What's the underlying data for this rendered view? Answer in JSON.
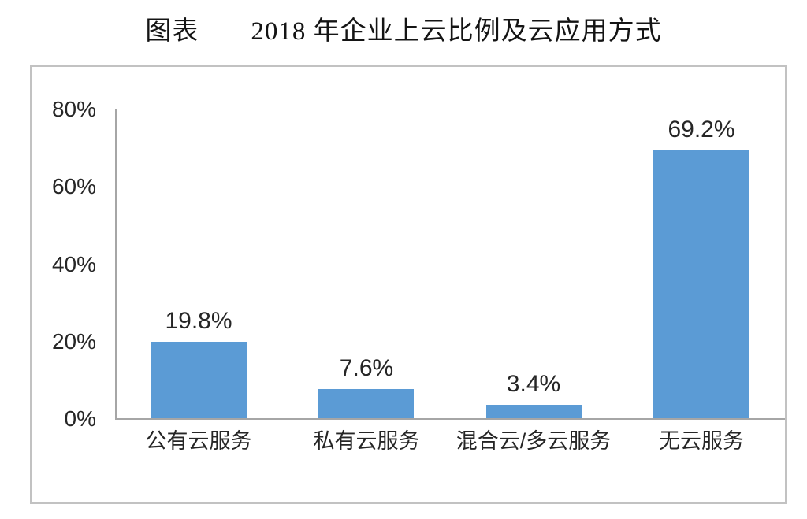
{
  "title": {
    "prefix": "图表",
    "text": "2018 年企业上云比例及云应用方式"
  },
  "chart_data": {
    "type": "bar",
    "title": "图表 2018 年企业上云比例及云应用方式",
    "categories": [
      "公有云服务",
      "私有云服务",
      "混合云/多云服务",
      "无云服务"
    ],
    "values": [
      19.8,
      7.6,
      3.4,
      69.2
    ],
    "value_labels": [
      "19.8%",
      "7.6%",
      "3.4%",
      "69.2%"
    ],
    "xlabel": "",
    "ylabel": "",
    "ylim": [
      0,
      80
    ],
    "ytick_labels": [
      "80%",
      "60%",
      "40%",
      "20%",
      "0%"
    ],
    "ytick_values": [
      80,
      60,
      40,
      20,
      0
    ],
    "grid": false,
    "legend": false,
    "bar_color": "#5B9BD5",
    "axis_color": "#a6a6a6",
    "frame_border_color": "#c2c2c2",
    "label_color": "#262626"
  }
}
